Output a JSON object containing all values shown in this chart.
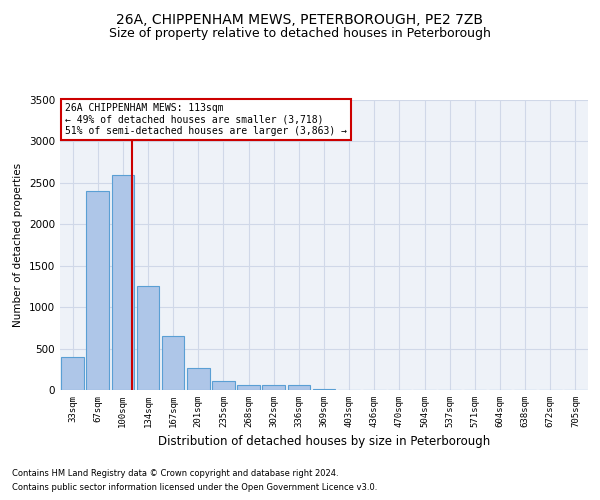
{
  "title": "26A, CHIPPENHAM MEWS, PETERBOROUGH, PE2 7ZB",
  "subtitle": "Size of property relative to detached houses in Peterborough",
  "xlabel": "Distribution of detached houses by size in Peterborough",
  "ylabel": "Number of detached properties",
  "footnote1": "Contains HM Land Registry data © Crown copyright and database right 2024.",
  "footnote2": "Contains public sector information licensed under the Open Government Licence v3.0.",
  "bar_labels": [
    "33sqm",
    "67sqm",
    "100sqm",
    "134sqm",
    "167sqm",
    "201sqm",
    "235sqm",
    "268sqm",
    "302sqm",
    "336sqm",
    "369sqm",
    "403sqm",
    "436sqm",
    "470sqm",
    "504sqm",
    "537sqm",
    "571sqm",
    "604sqm",
    "638sqm",
    "672sqm",
    "705sqm"
  ],
  "bar_values": [
    400,
    2400,
    2600,
    1250,
    650,
    270,
    110,
    65,
    55,
    55,
    10,
    5,
    5,
    0,
    0,
    0,
    0,
    0,
    0,
    0,
    0
  ],
  "bar_color": "#aec6e8",
  "bar_edge_color": "#5a9fd4",
  "ylim": [
    0,
    3500
  ],
  "yticks": [
    0,
    500,
    1000,
    1500,
    2000,
    2500,
    3000,
    3500
  ],
  "vline_color": "#cc0000",
  "annotation_text": "26A CHIPPENHAM MEWS: 113sqm\n← 49% of detached houses are smaller (3,718)\n51% of semi-detached houses are larger (3,863) →",
  "annotation_box_color": "#ffffff",
  "annotation_box_edge": "#cc0000",
  "grid_color": "#d0d8e8",
  "background_color": "#eef2f8",
  "title_fontsize": 10,
  "subtitle_fontsize": 9
}
